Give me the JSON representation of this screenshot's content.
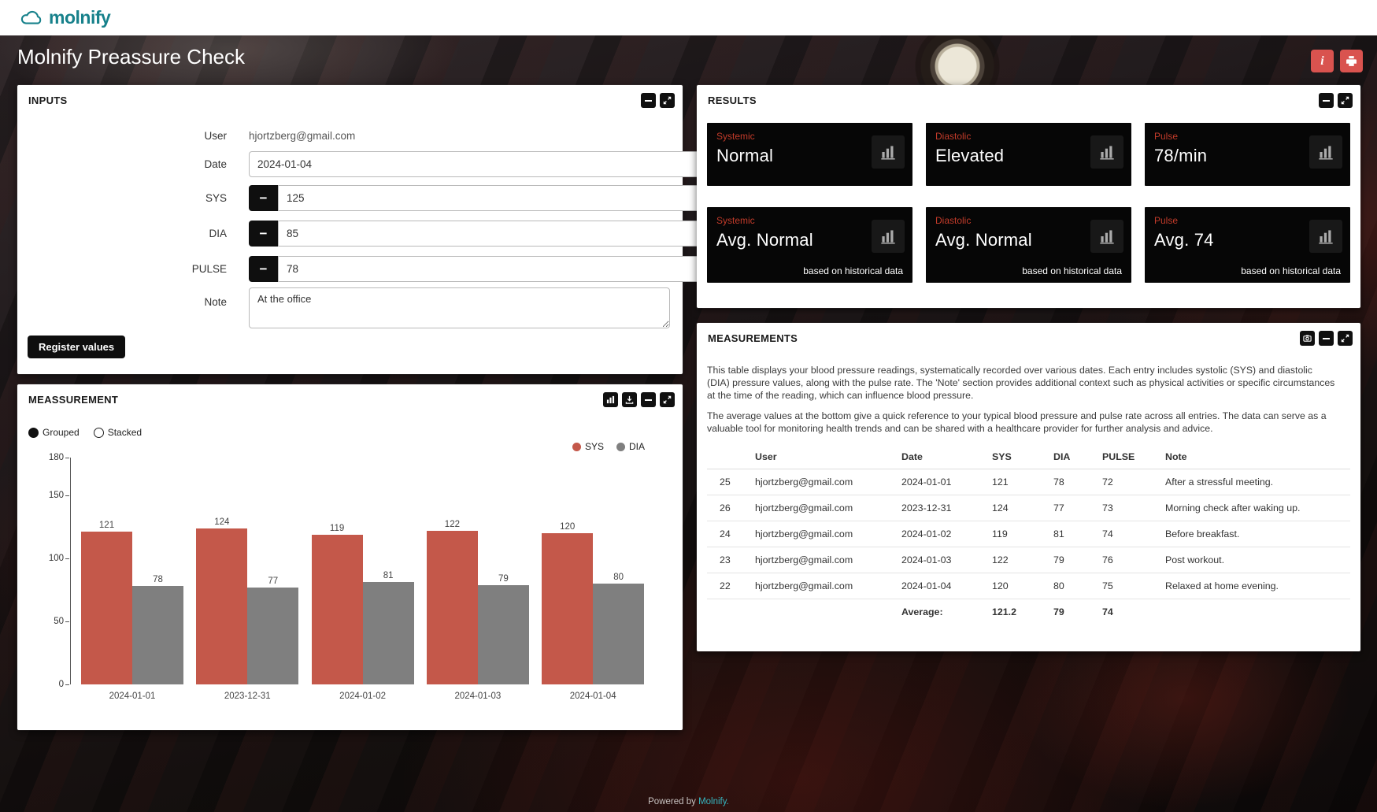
{
  "brand": {
    "logo_text": "molnify"
  },
  "colors": {
    "brand_teal": "#17818b",
    "accent_red": "#d9534f",
    "sys_bar": "#c4584a",
    "dia_bar": "#7f7f7f",
    "card_label_red": "#c23b2a"
  },
  "glyphs": {
    "minus": "−",
    "plus": "+",
    "info": "i"
  },
  "header": {
    "title": "Molnify Preassure Check"
  },
  "inputs_panel": {
    "title": "INPUTS",
    "fields": {
      "user_label": "User",
      "user_value": "hjortzberg@gmail.com",
      "date_label": "Date",
      "date_value": "2024-01-04",
      "sys_label": "SYS",
      "sys_value": "125",
      "dia_label": "DIA",
      "dia_value": "85",
      "pulse_label": "PULSE",
      "pulse_value": "78",
      "note_label": "Note",
      "note_value": "At the office"
    },
    "register_button_label": "Register values"
  },
  "measurement_panel": {
    "title": "MEASSUREMENT",
    "grouped_label": "Grouped",
    "stacked_label": "Stacked"
  },
  "chart_data": {
    "type": "bar",
    "title": "",
    "categories": [
      "2024-01-01",
      "2023-12-31",
      "2024-01-02",
      "2024-01-03",
      "2024-01-04"
    ],
    "series": [
      {
        "name": "SYS",
        "color": "#c4584a",
        "values": [
          121,
          124,
          119,
          122,
          120
        ]
      },
      {
        "name": "DIA",
        "color": "#7f7f7f",
        "values": [
          78,
          77,
          81,
          79,
          80
        ]
      }
    ],
    "ylim": [
      0,
      180
    ],
    "yticks": [
      0,
      50,
      100,
      150,
      180
    ],
    "legend_position": "top-right",
    "grid": false
  },
  "results_panel": {
    "title": "RESULTS",
    "cards": [
      {
        "category": "Systemic",
        "value": "Normal",
        "footnote": ""
      },
      {
        "category": "Diastolic",
        "value": "Elevated",
        "footnote": ""
      },
      {
        "category": "Pulse",
        "value": "78/min",
        "footnote": ""
      },
      {
        "category": "Systemic",
        "value": "Avg. Normal",
        "footnote": "based on historical data"
      },
      {
        "category": "Diastolic",
        "value": "Avg. Normal",
        "footnote": "based on historical data"
      },
      {
        "category": "Pulse",
        "value": "Avg. 74",
        "footnote": "based on historical data"
      }
    ]
  },
  "measurements_panel": {
    "title": "MEASUREMENTS",
    "description1": "This table displays your blood pressure readings, systematically recorded over various dates. Each entry includes systolic (SYS) and diastolic (DIA) pressure values, along with the pulse rate. The 'Note' section provides additional context such as physical activities or specific circumstances at the time of the reading, which can influence blood pressure.",
    "description2": "The average values at the bottom give a quick reference to your typical blood pressure and pulse rate across all entries. The data can serve as a valuable tool for monitoring health trends and can be shared with a healthcare provider for further analysis and advice.",
    "table": {
      "headers": [
        "",
        "User",
        "Date",
        "SYS",
        "DIA",
        "PULSE",
        "Note"
      ],
      "rows": [
        [
          "25",
          "hjortzberg@gmail.com",
          "2024-01-01",
          "121",
          "78",
          "72",
          "After a stressful meeting."
        ],
        [
          "26",
          "hjortzberg@gmail.com",
          "2023-12-31",
          "124",
          "77",
          "73",
          "Morning check after waking up."
        ],
        [
          "24",
          "hjortzberg@gmail.com",
          "2024-01-02",
          "119",
          "81",
          "74",
          "Before breakfast."
        ],
        [
          "23",
          "hjortzberg@gmail.com",
          "2024-01-03",
          "122",
          "79",
          "76",
          "Post workout."
        ],
        [
          "22",
          "hjortzberg@gmail.com",
          "2024-01-04",
          "120",
          "80",
          "75",
          "Relaxed at home evening."
        ]
      ],
      "average_label": "Average:",
      "average_values": [
        "121.2",
        "79",
        "74"
      ]
    }
  },
  "footer": {
    "powered_by": "Powered by",
    "link_label": "Molnify."
  }
}
